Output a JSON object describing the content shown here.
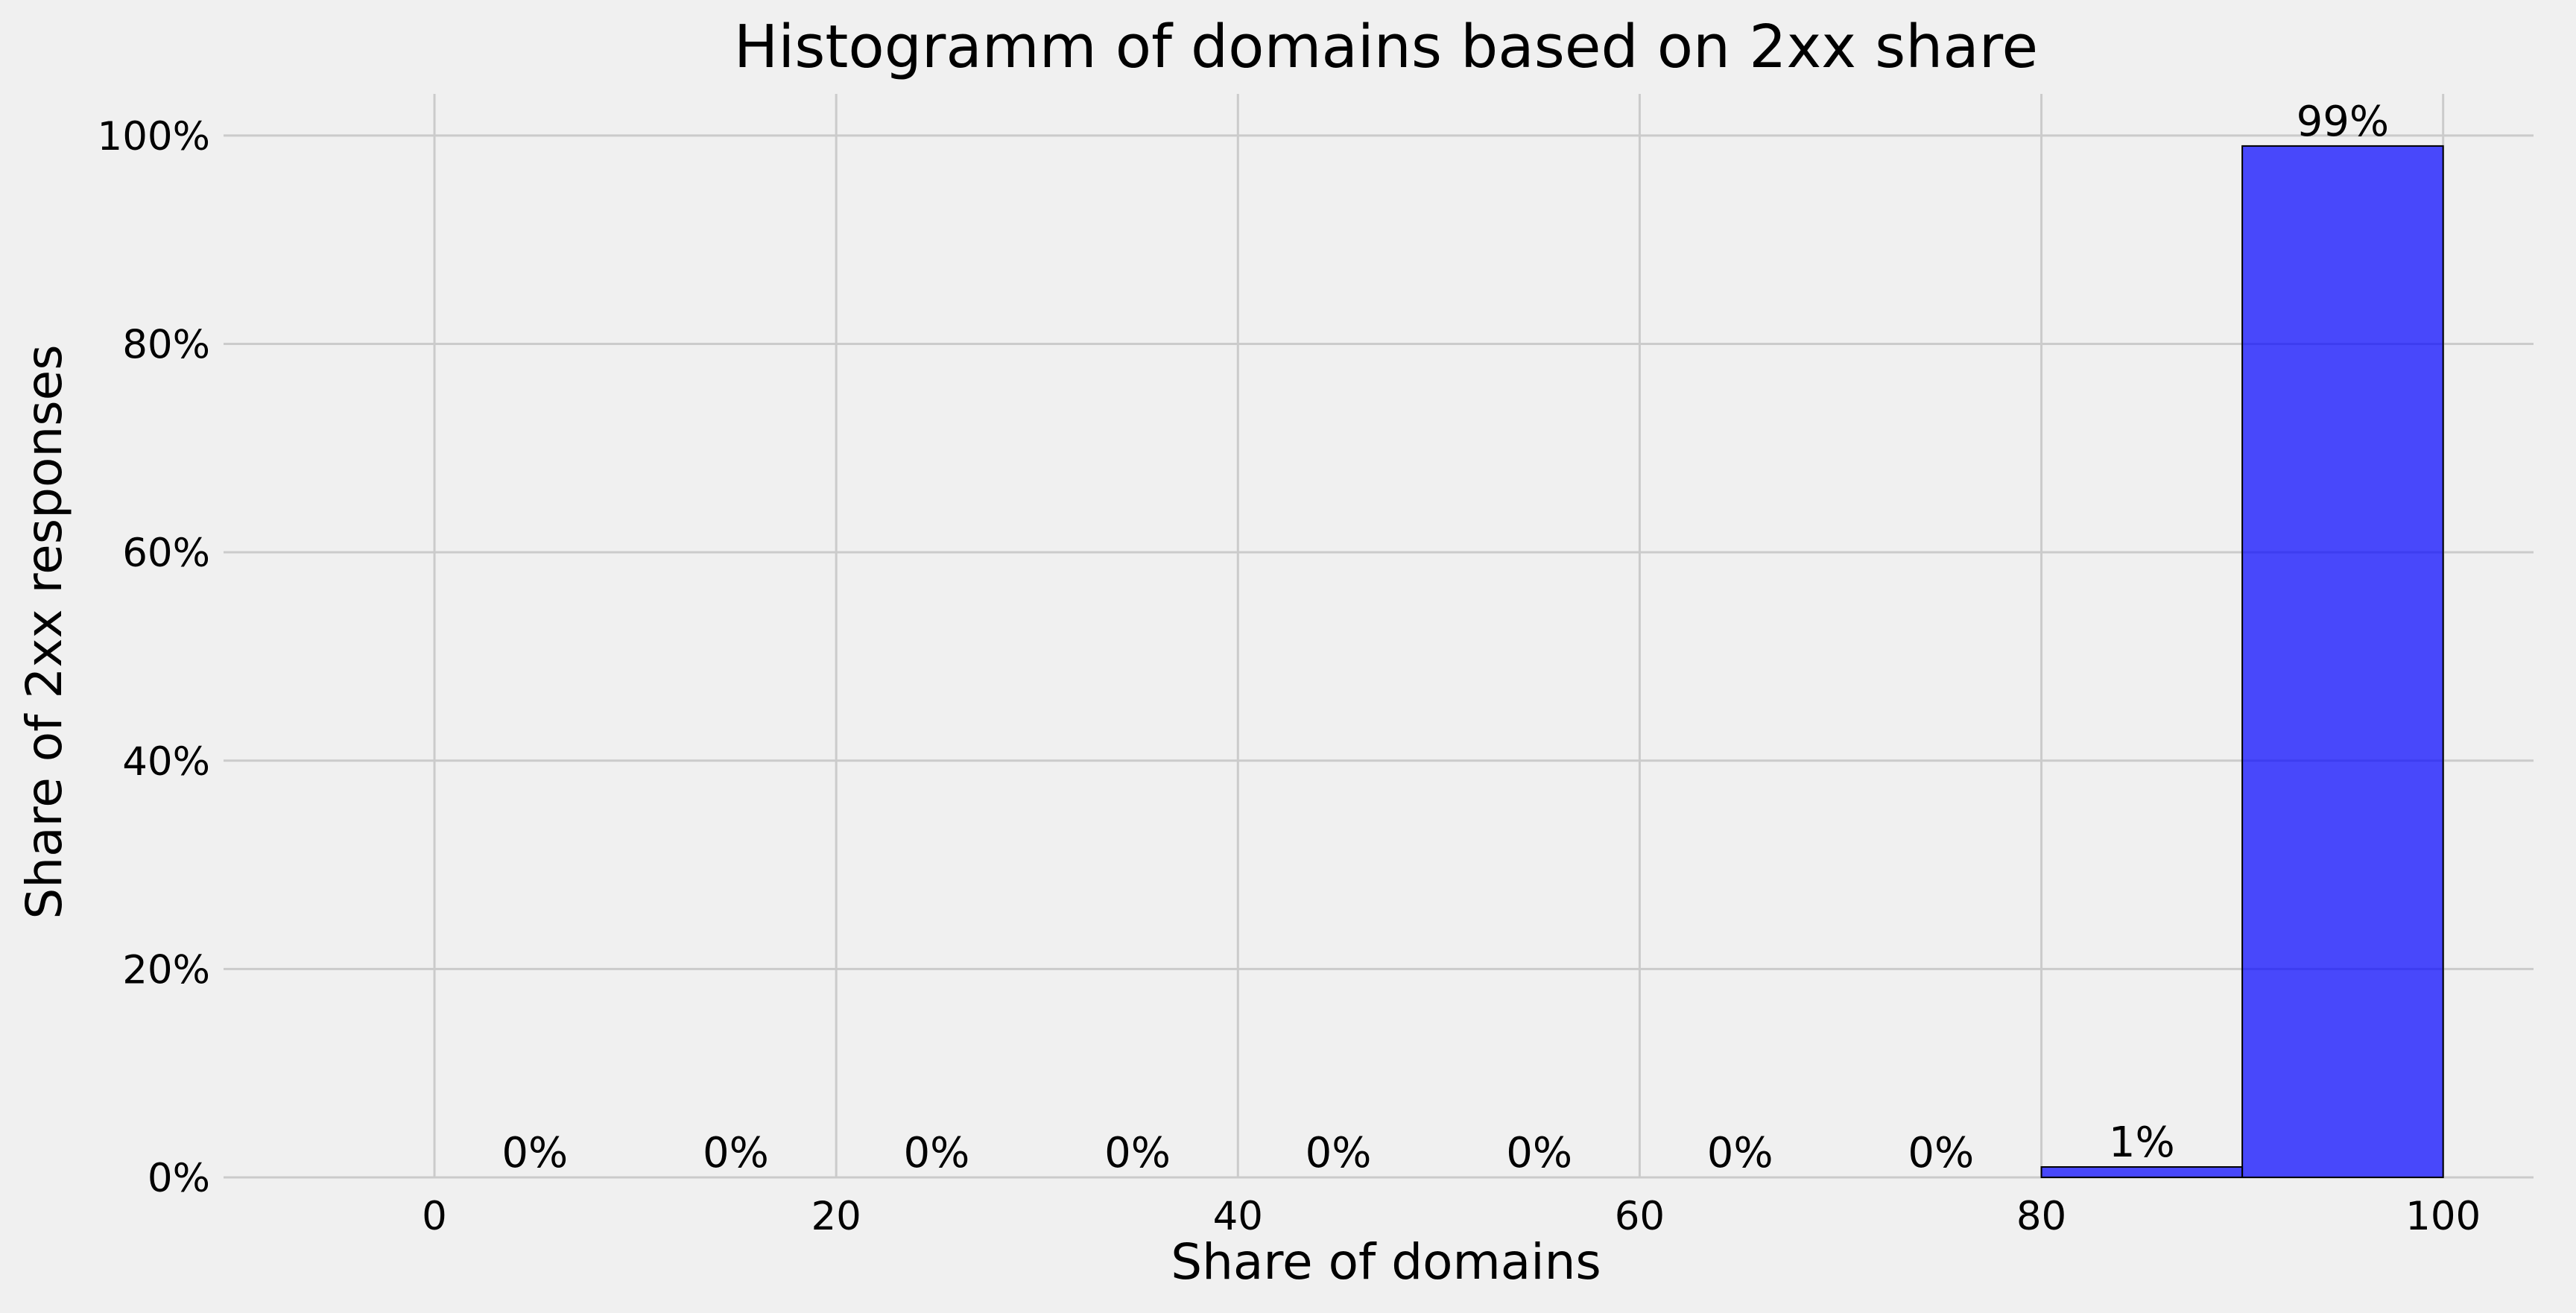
{
  "chart_data": {
    "type": "bar",
    "title": "Histogramm of domains based on 2xx share",
    "xlabel": "Share of domains",
    "ylabel": "Share of 2xx responses",
    "xlim": [
      -10.5,
      104.5
    ],
    "ylim": [
      0,
      1.04
    ],
    "xticks": [
      0,
      20,
      40,
      60,
      80,
      100
    ],
    "xtick_labels": [
      "0",
      "20",
      "40",
      "60",
      "80",
      "100"
    ],
    "yticks": [
      0,
      0.2,
      0.4,
      0.6,
      0.8,
      1.0
    ],
    "ytick_labels": [
      "0%",
      "20%",
      "40%",
      "60%",
      "80%",
      "100%"
    ],
    "grid": true,
    "bar_color": "#0000ff",
    "bar_opacity": 0.7,
    "bins": [
      {
        "start": 0,
        "end": 10,
        "value": 0.0,
        "label": "0%"
      },
      {
        "start": 10,
        "end": 20,
        "value": 0.0,
        "label": "0%"
      },
      {
        "start": 20,
        "end": 30,
        "value": 0.0,
        "label": "0%"
      },
      {
        "start": 30,
        "end": 40,
        "value": 0.0,
        "label": "0%"
      },
      {
        "start": 40,
        "end": 50,
        "value": 0.0,
        "label": "0%"
      },
      {
        "start": 50,
        "end": 60,
        "value": 0.0,
        "label": "0%"
      },
      {
        "start": 60,
        "end": 70,
        "value": 0.0,
        "label": "0%"
      },
      {
        "start": 70,
        "end": 80,
        "value": 0.0,
        "label": "0%"
      },
      {
        "start": 80,
        "end": 90,
        "value": 0.01,
        "label": "1%"
      },
      {
        "start": 90,
        "end": 100,
        "value": 0.99,
        "label": "99%"
      }
    ]
  }
}
